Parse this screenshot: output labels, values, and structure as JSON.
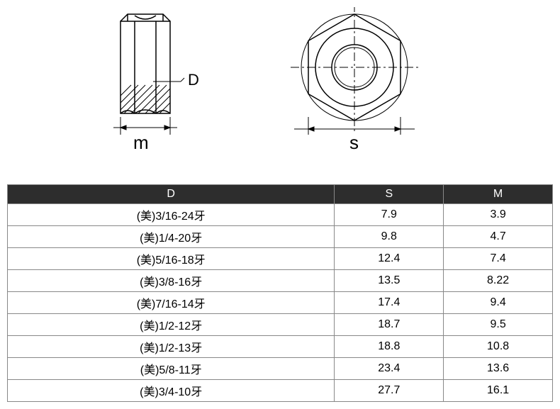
{
  "diagram": {
    "side_view": {
      "label_D": "D",
      "label_m": "m",
      "stroke": "#000000",
      "hatch_stroke": "#000000",
      "text_fontsize": 22
    },
    "top_view": {
      "label_s": "s",
      "stroke": "#000000",
      "centerline_stroke": "#000000",
      "text_fontsize": 22
    }
  },
  "table": {
    "header_bg": "#2d2d2d",
    "header_color": "#ffffff",
    "border_color": "#888888",
    "columns": [
      "D",
      "S",
      "M"
    ],
    "rows": [
      [
        "(美)3/16-24牙",
        "7.9",
        "3.9"
      ],
      [
        "(美)1/4-20牙",
        "9.8",
        "4.7"
      ],
      [
        "(美)5/16-18牙",
        "12.4",
        "7.4"
      ],
      [
        "(美)3/8-16牙",
        "13.5",
        "8.22"
      ],
      [
        "(美)7/16-14牙",
        "17.4",
        "9.4"
      ],
      [
        "(美)1/2-12牙",
        "18.7",
        "9.5"
      ],
      [
        "(美)1/2-13牙",
        "18.8",
        "10.8"
      ],
      [
        "(美)5/8-11牙",
        "23.4",
        "13.6"
      ],
      [
        "(美)3/4-10牙",
        "27.7",
        "16.1"
      ]
    ]
  }
}
